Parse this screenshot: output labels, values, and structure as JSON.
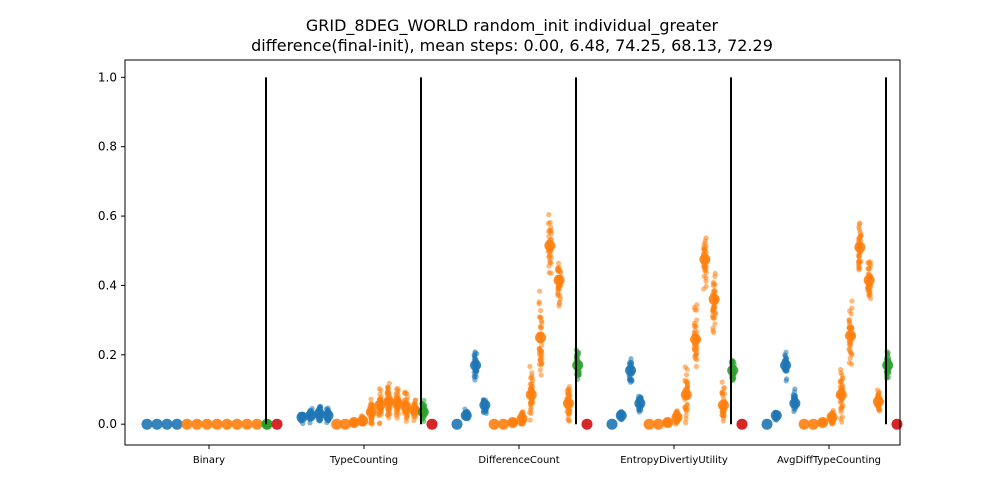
{
  "chart_data": {
    "type": "scatter",
    "title_line1": "GRID_8DEG_WORLD random_init individual_greater",
    "title_line2": "difference(final-init), mean steps: 0.00, 6.48, 74.25, 68.13, 72.29",
    "xlabel": "",
    "ylabel": "",
    "ylim": [
      -0.06,
      1.05
    ],
    "yticks": [
      "0.0",
      "0.2",
      "0.4",
      "0.6",
      "0.8",
      "1.0"
    ],
    "grid": false,
    "categories": [
      "Binary",
      "TypeCounting",
      "DifferenceCount",
      "EntropyDivertiyUtility",
      "AvgDiffTypeCounting"
    ],
    "colors": {
      "blue": "#1f77b4",
      "orange": "#ff7f0e",
      "green": "#2ca02c",
      "red": "#d62728",
      "separator": "#000000"
    },
    "groups": [
      {
        "category": "Binary",
        "clusters": [
          {
            "color": "blue",
            "mean": 0.0,
            "spread": 0.0
          },
          {
            "color": "blue",
            "mean": 0.0,
            "spread": 0.0
          },
          {
            "color": "blue",
            "mean": 0.0,
            "spread": 0.0
          },
          {
            "color": "blue",
            "mean": 0.0,
            "spread": 0.0
          },
          {
            "color": "orange",
            "mean": 0.0,
            "spread": 0.0
          },
          {
            "color": "orange",
            "mean": 0.0,
            "spread": 0.0
          },
          {
            "color": "orange",
            "mean": 0.0,
            "spread": 0.0
          },
          {
            "color": "orange",
            "mean": 0.0,
            "spread": 0.0
          },
          {
            "color": "orange",
            "mean": 0.0,
            "spread": 0.0
          },
          {
            "color": "orange",
            "mean": 0.0,
            "spread": 0.0
          },
          {
            "color": "orange",
            "mean": 0.0,
            "spread": 0.0
          },
          {
            "color": "orange",
            "mean": 0.0,
            "spread": 0.0
          },
          {
            "color": "green",
            "mean": 0.0,
            "spread": 0.0
          },
          {
            "color": "red",
            "mean": 0.0,
            "spread": 0.0
          }
        ]
      },
      {
        "category": "TypeCounting",
        "clusters": [
          {
            "color": "blue",
            "mean": 0.02,
            "spread": 0.015
          },
          {
            "color": "blue",
            "mean": 0.025,
            "spread": 0.02
          },
          {
            "color": "blue",
            "mean": 0.03,
            "spread": 0.03
          },
          {
            "color": "blue",
            "mean": 0.025,
            "spread": 0.02
          },
          {
            "color": "orange",
            "mean": 0.0,
            "spread": 0.0
          },
          {
            "color": "orange",
            "mean": 0.0,
            "spread": 0.0
          },
          {
            "color": "orange",
            "mean": 0.005,
            "spread": 0.005
          },
          {
            "color": "orange",
            "mean": 0.01,
            "spread": 0.015
          },
          {
            "color": "orange",
            "mean": 0.035,
            "spread": 0.04
          },
          {
            "color": "orange",
            "mean": 0.055,
            "spread": 0.05
          },
          {
            "color": "orange",
            "mean": 0.065,
            "spread": 0.055
          },
          {
            "color": "orange",
            "mean": 0.06,
            "spread": 0.05
          },
          {
            "color": "orange",
            "mean": 0.05,
            "spread": 0.04
          },
          {
            "color": "orange",
            "mean": 0.04,
            "spread": 0.035
          },
          {
            "color": "green",
            "mean": 0.035,
            "spread": 0.03
          },
          {
            "color": "red",
            "mean": 0.0,
            "spread": 0.0
          }
        ]
      },
      {
        "category": "DifferenceCount",
        "clusters": [
          {
            "color": "blue",
            "mean": 0.0,
            "spread": 0.0
          },
          {
            "color": "blue",
            "mean": 0.025,
            "spread": 0.015
          },
          {
            "color": "blue",
            "mean": 0.17,
            "spread": 0.045
          },
          {
            "color": "blue",
            "mean": 0.055,
            "spread": 0.03
          },
          {
            "color": "orange",
            "mean": 0.0,
            "spread": 0.0
          },
          {
            "color": "orange",
            "mean": 0.0,
            "spread": 0.0
          },
          {
            "color": "orange",
            "mean": 0.005,
            "spread": 0.005
          },
          {
            "color": "orange",
            "mean": 0.015,
            "spread": 0.02
          },
          {
            "color": "orange",
            "mean": 0.085,
            "spread": 0.09
          },
          {
            "color": "orange",
            "mean": 0.25,
            "spread": 0.1
          },
          {
            "color": "orange",
            "mean": 0.515,
            "spread": 0.07
          },
          {
            "color": "orange",
            "mean": 0.415,
            "spread": 0.07
          },
          {
            "color": "orange",
            "mean": 0.06,
            "spread": 0.06
          },
          {
            "color": "green",
            "mean": 0.17,
            "spread": 0.045
          },
          {
            "color": "red",
            "mean": 0.0,
            "spread": 0.0
          }
        ]
      },
      {
        "category": "EntropyDivertiyUtility",
        "clusters": [
          {
            "color": "blue",
            "mean": 0.0,
            "spread": 0.0
          },
          {
            "color": "blue",
            "mean": 0.025,
            "spread": 0.015
          },
          {
            "color": "blue",
            "mean": 0.155,
            "spread": 0.04
          },
          {
            "color": "blue",
            "mean": 0.06,
            "spread": 0.03
          },
          {
            "color": "orange",
            "mean": 0.0,
            "spread": 0.0
          },
          {
            "color": "orange",
            "mean": 0.0,
            "spread": 0.0
          },
          {
            "color": "orange",
            "mean": 0.005,
            "spread": 0.005
          },
          {
            "color": "orange",
            "mean": 0.02,
            "spread": 0.02
          },
          {
            "color": "orange",
            "mean": 0.085,
            "spread": 0.08
          },
          {
            "color": "orange",
            "mean": 0.245,
            "spread": 0.09
          },
          {
            "color": "orange",
            "mean": 0.475,
            "spread": 0.085
          },
          {
            "color": "orange",
            "mean": 0.36,
            "spread": 0.09
          },
          {
            "color": "orange",
            "mean": 0.055,
            "spread": 0.05
          },
          {
            "color": "green",
            "mean": 0.155,
            "spread": 0.035
          },
          {
            "color": "red",
            "mean": 0.0,
            "spread": 0.0
          }
        ]
      },
      {
        "category": "AvgDiffTypeCounting",
        "clusters": [
          {
            "color": "blue",
            "mean": 0.0,
            "spread": 0.0
          },
          {
            "color": "blue",
            "mean": 0.025,
            "spread": 0.015
          },
          {
            "color": "blue",
            "mean": 0.17,
            "spread": 0.04
          },
          {
            "color": "blue",
            "mean": 0.06,
            "spread": 0.03
          },
          {
            "color": "orange",
            "mean": 0.0,
            "spread": 0.0
          },
          {
            "color": "orange",
            "mean": 0.0,
            "spread": 0.0
          },
          {
            "color": "orange",
            "mean": 0.005,
            "spread": 0.005
          },
          {
            "color": "orange",
            "mean": 0.02,
            "spread": 0.02
          },
          {
            "color": "orange",
            "mean": 0.085,
            "spread": 0.09
          },
          {
            "color": "orange",
            "mean": 0.255,
            "spread": 0.095
          },
          {
            "color": "orange",
            "mean": 0.51,
            "spread": 0.075
          },
          {
            "color": "orange",
            "mean": 0.415,
            "spread": 0.07
          },
          {
            "color": "orange",
            "mean": 0.065,
            "spread": 0.04
          },
          {
            "color": "green",
            "mean": 0.17,
            "spread": 0.04
          },
          {
            "color": "red",
            "mean": 0.0,
            "spread": 0.0
          }
        ]
      }
    ]
  }
}
